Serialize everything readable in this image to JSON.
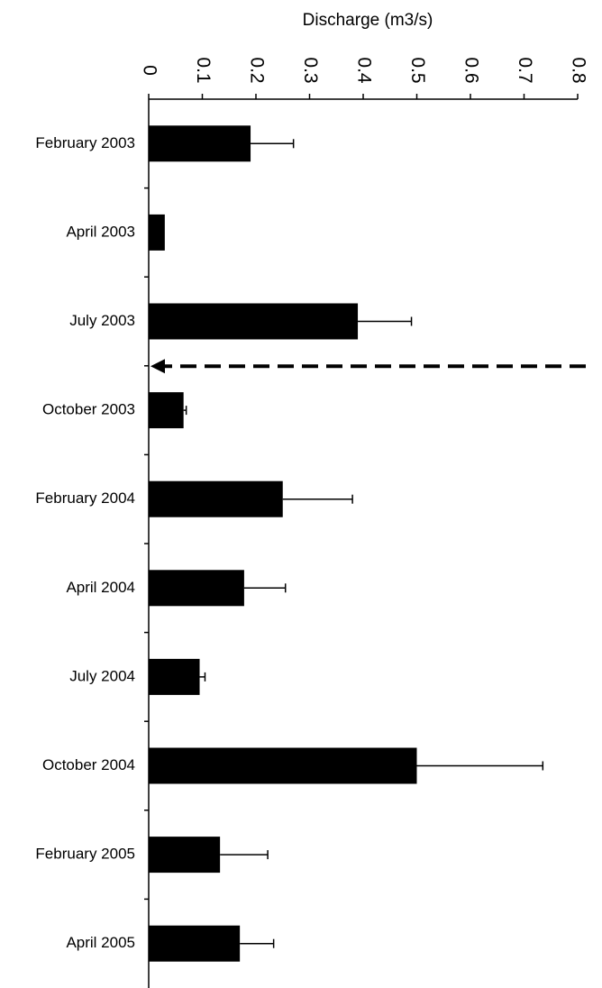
{
  "chart_data": {
    "type": "bar",
    "orientation": "horizontal",
    "xlabel": "Discharge (m3/s)",
    "xlim": [
      0,
      0.8
    ],
    "ticks": [
      "0",
      "0.1",
      "0.2",
      "0.3",
      "0.4",
      "0.5",
      "0.6",
      "0.7",
      "0.8"
    ],
    "tick_values": [
      0,
      0.1,
      0.2,
      0.3,
      0.4,
      0.5,
      0.6,
      0.7,
      0.8
    ],
    "categories": [
      "February 2003",
      "April 2003",
      "July 2003",
      "October 2003",
      "February 2004",
      "April 2004",
      "July 2004",
      "October 2004",
      "February 2005",
      "April 2005"
    ],
    "values": [
      0.19,
      0.03,
      0.39,
      0.065,
      0.25,
      0.178,
      0.095,
      0.5,
      0.133,
      0.17
    ],
    "error_upper": [
      0.27,
      null,
      0.49,
      0.07,
      0.38,
      0.255,
      0.105,
      0.735,
      0.222,
      0.233
    ],
    "annotations": [
      {
        "type": "dashed-arrow",
        "between": [
          "July 2003",
          "October 2003"
        ],
        "direction": "left"
      }
    ],
    "colors": {
      "bar": "#000000",
      "axis": "#000000"
    },
    "grid": false,
    "legend": "none"
  }
}
